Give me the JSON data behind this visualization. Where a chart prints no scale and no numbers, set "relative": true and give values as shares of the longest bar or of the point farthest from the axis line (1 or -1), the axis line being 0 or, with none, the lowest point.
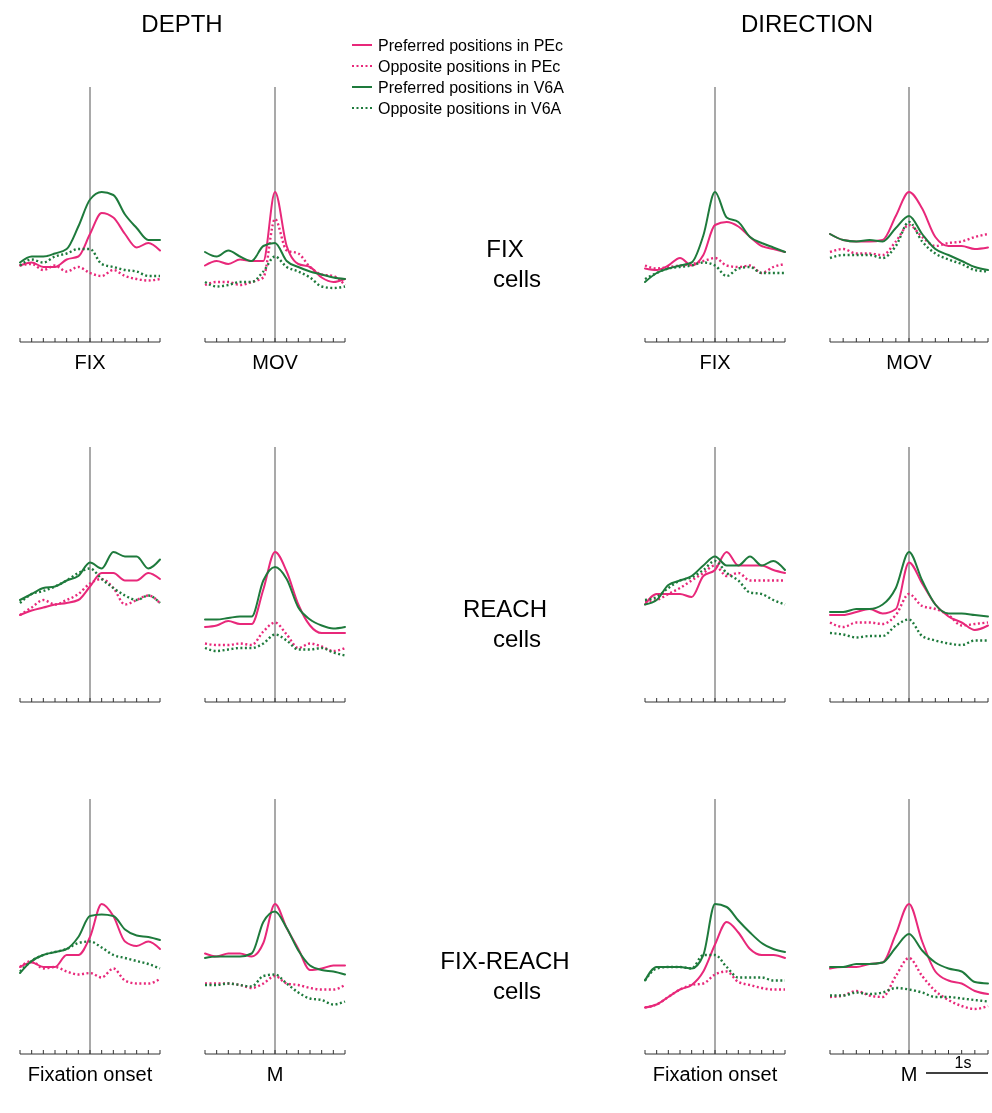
{
  "chart_data": [
    {
      "type": "line",
      "title": "DEPTH",
      "relative": true,
      "annotations": [
        "FIX"
      ],
      "categories": [
        null,
        null,
        null,
        null,
        null,
        null,
        null,
        null,
        null,
        null,
        null,
        null,
        null
      ],
      "series": [
        {
          "color": "#e8287a",
          "line_style": "solid",
          "values": [
            0.51,
            0.53,
            0.5,
            0.5,
            0.55,
            0.57,
            0.72,
            0.86,
            0.83,
            0.72,
            0.63,
            0.66,
            0.61
          ]
        },
        {
          "color": "#e8287a",
          "line_style": "dotted",
          "values": [
            0.51,
            0.52,
            0.48,
            0.51,
            0.47,
            0.5,
            0.46,
            0.44,
            0.48,
            0.44,
            0.42,
            0.41,
            0.42
          ]
        },
        {
          "color": "#1e7a3c",
          "line_style": "solid",
          "values": [
            0.53,
            0.57,
            0.57,
            0.59,
            0.62,
            0.77,
            0.95,
            1,
            0.98,
            0.85,
            0.76,
            0.68,
            0.68
          ]
        },
        {
          "color": "#1e7a3c",
          "line_style": "dotted",
          "values": [
            0.51,
            0.55,
            0.53,
            0.57,
            0.59,
            0.62,
            0.62,
            0.52,
            0.5,
            0.48,
            0.47,
            0.44,
            0.44
          ]
        }
      ]
    },
    {
      "type": "line",
      "relative": true,
      "legend": "top right",
      "annotations": [
        "MOV"
      ],
      "categories": [
        null,
        null,
        null,
        null,
        null,
        null,
        null,
        null,
        null,
        null,
        null,
        null,
        null
      ],
      "series": [
        {
          "name": "Preferred positions in PEc",
          "color": "#e8287a",
          "line_style": "solid",
          "values": [
            0.51,
            0.54,
            0.52,
            0.55,
            0.54,
            0.54,
            1,
            0.64,
            0.52,
            0.5,
            0.43,
            0.4,
            0.42
          ]
        },
        {
          "name": "Opposite positions in PEc",
          "color": "#e8287a",
          "line_style": "dotted",
          "values": [
            0.38,
            0.4,
            0.4,
            0.38,
            0.4,
            0.43,
            0.82,
            0.61,
            0.59,
            0.5,
            0.45,
            0.44,
            0.38
          ]
        },
        {
          "name": "Preferred positions in V6A",
          "color": "#1e7a3c",
          "line_style": "solid",
          "values": [
            0.6,
            0.57,
            0.61,
            0.57,
            0.54,
            0.64,
            0.66,
            0.54,
            0.5,
            0.47,
            0.45,
            0.43,
            0.42
          ]
        },
        {
          "name": "Opposite positions in V6A",
          "color": "#1e7a3c",
          "line_style": "dotted",
          "values": [
            0.4,
            0.37,
            0.38,
            0.4,
            0.4,
            0.47,
            0.57,
            0.5,
            0.47,
            0.43,
            0.37,
            0.36,
            0.37
          ]
        }
      ]
    },
    {
      "type": "line",
      "title": "DIRECTION",
      "ylabel": "FIX cells",
      "relative": true,
      "annotations": [
        "FIX"
      ],
      "categories": [
        null,
        null,
        null,
        null,
        null,
        null,
        null,
        null,
        null,
        null,
        null,
        null,
        null
      ],
      "series": [
        {
          "color": "#e8287a",
          "line_style": "solid",
          "values": [
            0.49,
            0.48,
            0.51,
            0.56,
            0.51,
            0.58,
            0.78,
            0.8,
            0.77,
            0.7,
            0.64,
            0.62,
            0.6
          ]
        },
        {
          "color": "#e8287a",
          "line_style": "dotted",
          "values": [
            0.51,
            0.49,
            0.5,
            0.51,
            0.52,
            0.54,
            0.56,
            0.51,
            0.5,
            0.51,
            0.46,
            0.5,
            0.52
          ]
        },
        {
          "color": "#1e7a3c",
          "line_style": "solid",
          "values": [
            0.4,
            0.46,
            0.49,
            0.51,
            0.53,
            0.71,
            1,
            0.83,
            0.8,
            0.7,
            0.66,
            0.63,
            0.6
          ]
        },
        {
          "color": "#1e7a3c",
          "line_style": "dotted",
          "values": [
            0.42,
            0.46,
            0.49,
            0.5,
            0.51,
            0.53,
            0.51,
            0.44,
            0.49,
            0.5,
            0.46,
            0.46,
            0.46
          ]
        }
      ]
    },
    {
      "type": "line",
      "relative": true,
      "annotations": [
        "MOV"
      ],
      "categories": [
        null,
        null,
        null,
        null,
        null,
        null,
        null,
        null,
        null,
        null,
        null,
        null,
        null
      ],
      "series": [
        {
          "color": "#e8287a",
          "line_style": "solid",
          "values": [
            0.72,
            0.68,
            0.67,
            0.67,
            0.68,
            0.84,
            1,
            0.89,
            0.7,
            0.64,
            0.64,
            0.62,
            0.63
          ]
        },
        {
          "color": "#e8287a",
          "line_style": "dotted",
          "values": [
            0.6,
            0.62,
            0.59,
            0.59,
            0.58,
            0.67,
            0.78,
            0.7,
            0.64,
            0.66,
            0.67,
            0.7,
            0.72
          ]
        },
        {
          "color": "#1e7a3c",
          "line_style": "solid",
          "values": [
            0.72,
            0.68,
            0.67,
            0.68,
            0.67,
            0.76,
            0.84,
            0.72,
            0.62,
            0.58,
            0.54,
            0.5,
            0.48
          ]
        },
        {
          "color": "#1e7a3c",
          "line_style": "dotted",
          "values": [
            0.56,
            0.58,
            0.58,
            0.58,
            0.56,
            0.64,
            0.8,
            0.67,
            0.59,
            0.55,
            0.52,
            0.48,
            0.47
          ]
        }
      ]
    },
    {
      "type": "line",
      "relative": true,
      "categories": [
        null,
        null,
        null,
        null,
        null,
        null,
        null,
        null,
        null,
        null,
        null,
        null,
        null
      ],
      "series": [
        {
          "color": "#e8287a",
          "line_style": "solid",
          "values": [
            0.58,
            0.61,
            0.63,
            0.65,
            0.66,
            0.68,
            0.77,
            0.86,
            0.86,
            0.81,
            0.81,
            0.86,
            0.82
          ]
        },
        {
          "color": "#e8287a",
          "line_style": "dotted",
          "values": [
            0.58,
            0.63,
            0.68,
            0.65,
            0.68,
            0.72,
            0.79,
            0.82,
            0.76,
            0.65,
            0.68,
            0.71,
            0.66
          ]
        },
        {
          "color": "#1e7a3c",
          "line_style": "solid",
          "values": [
            0.68,
            0.72,
            0.76,
            0.77,
            0.81,
            0.84,
            0.93,
            0.89,
            1,
            0.97,
            0.97,
            0.89,
            0.95
          ]
        },
        {
          "color": "#1e7a3c",
          "line_style": "dotted",
          "values": [
            0.66,
            0.72,
            0.74,
            0.77,
            0.81,
            0.86,
            0.89,
            0.82,
            0.76,
            0.71,
            0.68,
            0.71,
            0.66
          ]
        }
      ]
    },
    {
      "type": "line",
      "relative": true,
      "categories": [
        null,
        null,
        null,
        null,
        null,
        null,
        null,
        null,
        null,
        null,
        null,
        null,
        null
      ],
      "series": [
        {
          "color": "#e8287a",
          "line_style": "solid",
          "values": [
            0.5,
            0.51,
            0.54,
            0.52,
            0.52,
            0.75,
            1,
            0.87,
            0.65,
            0.51,
            0.46,
            0.46,
            0.46
          ]
        },
        {
          "color": "#e8287a",
          "line_style": "dotted",
          "values": [
            0.39,
            0.38,
            0.38,
            0.39,
            0.38,
            0.47,
            0.53,
            0.45,
            0.36,
            0.39,
            0.37,
            0.34,
            0.36
          ]
        },
        {
          "color": "#1e7a3c",
          "line_style": "solid",
          "values": [
            0.55,
            0.55,
            0.56,
            0.57,
            0.57,
            0.81,
            0.9,
            0.82,
            0.63,
            0.55,
            0.51,
            0.49,
            0.5
          ]
        },
        {
          "color": "#1e7a3c",
          "line_style": "dotted",
          "values": [
            0.36,
            0.34,
            0.35,
            0.36,
            0.36,
            0.39,
            0.45,
            0.41,
            0.35,
            0.35,
            0.36,
            0.33,
            0.31
          ]
        }
      ]
    },
    {
      "type": "line",
      "ylabel": "REACH cells",
      "relative": true,
      "categories": [
        null,
        null,
        null,
        null,
        null,
        null,
        null,
        null,
        null,
        null,
        null,
        null,
        null
      ],
      "series": [
        {
          "color": "#e8287a",
          "line_style": "solid",
          "values": [
            0.65,
            0.72,
            0.72,
            0.72,
            0.7,
            0.84,
            0.88,
            1,
            0.91,
            0.91,
            0.91,
            0.88,
            0.86
          ]
        },
        {
          "color": "#e8287a",
          "line_style": "dotted",
          "values": [
            0.67,
            0.68,
            0.72,
            0.76,
            0.81,
            0.86,
            0.91,
            0.84,
            0.86,
            0.81,
            0.81,
            0.81,
            0.81
          ]
        },
        {
          "color": "#1e7a3c",
          "line_style": "solid",
          "values": [
            0.65,
            0.68,
            0.78,
            0.81,
            0.84,
            0.91,
            0.97,
            0.91,
            0.91,
            0.97,
            0.91,
            0.94,
            0.88
          ]
        },
        {
          "color": "#1e7a3c",
          "line_style": "dotted",
          "values": [
            0.68,
            0.7,
            0.76,
            0.81,
            0.83,
            0.88,
            0.94,
            0.86,
            0.81,
            0.73,
            0.72,
            0.68,
            0.65
          ]
        }
      ]
    },
    {
      "type": "line",
      "relative": true,
      "categories": [
        null,
        null,
        null,
        null,
        null,
        null,
        null,
        null,
        null,
        null,
        null,
        null,
        null
      ],
      "series": [
        {
          "color": "#e8287a",
          "line_style": "solid",
          "values": [
            0.58,
            0.58,
            0.6,
            0.62,
            0.59,
            0.62,
            0.93,
            0.79,
            0.65,
            0.57,
            0.53,
            0.48,
            0.51
          ]
        },
        {
          "color": "#e8287a",
          "line_style": "dotted",
          "values": [
            0.53,
            0.5,
            0.53,
            0.53,
            0.52,
            0.58,
            0.72,
            0.64,
            0.62,
            0.58,
            0.51,
            0.52,
            0.53
          ]
        },
        {
          "color": "#1e7a3c",
          "line_style": "solid",
          "values": [
            0.6,
            0.6,
            0.62,
            0.62,
            0.65,
            0.76,
            1,
            0.81,
            0.65,
            0.59,
            0.59,
            0.58,
            0.57
          ]
        },
        {
          "color": "#1e7a3c",
          "line_style": "dotted",
          "values": [
            0.46,
            0.45,
            0.43,
            0.44,
            0.44,
            0.51,
            0.55,
            0.44,
            0.41,
            0.39,
            0.38,
            0.41,
            0.41
          ]
        }
      ]
    },
    {
      "type": "line",
      "relative": true,
      "annotations": [
        "Fixation onset"
      ],
      "categories": [
        null,
        null,
        null,
        null,
        null,
        null,
        null,
        null,
        null,
        null,
        null,
        null,
        null
      ],
      "series": [
        {
          "color": "#e8287a",
          "line_style": "solid",
          "values": [
            0.58,
            0.61,
            0.58,
            0.58,
            0.66,
            0.66,
            0.78,
            1,
            0.92,
            0.75,
            0.72,
            0.75,
            0.7
          ]
        },
        {
          "color": "#e8287a",
          "line_style": "dotted",
          "values": [
            0.58,
            0.62,
            0.57,
            0.58,
            0.55,
            0.53,
            0.54,
            0.51,
            0.57,
            0.49,
            0.47,
            0.47,
            0.5
          ]
        },
        {
          "color": "#1e7a3c",
          "line_style": "solid",
          "values": [
            0.54,
            0.62,
            0.66,
            0.68,
            0.7,
            0.78,
            0.92,
            0.93,
            0.92,
            0.83,
            0.79,
            0.78,
            0.76
          ]
        },
        {
          "color": "#1e7a3c",
          "line_style": "dotted",
          "values": [
            0.55,
            0.62,
            0.66,
            0.68,
            0.7,
            0.74,
            0.75,
            0.71,
            0.66,
            0.64,
            0.62,
            0.6,
            0.57
          ]
        }
      ]
    },
    {
      "type": "line",
      "relative": true,
      "annotations": [
        "M"
      ],
      "categories": [
        null,
        null,
        null,
        null,
        null,
        null,
        null,
        null,
        null,
        null,
        null,
        null,
        null
      ],
      "series": [
        {
          "color": "#e8287a",
          "line_style": "solid",
          "values": [
            0.67,
            0.65,
            0.67,
            0.67,
            0.65,
            0.74,
            1,
            0.84,
            0.7,
            0.56,
            0.57,
            0.59,
            0.59
          ]
        },
        {
          "color": "#e8287a",
          "line_style": "dotted",
          "values": [
            0.47,
            0.47,
            0.47,
            0.46,
            0.44,
            0.47,
            0.52,
            0.47,
            0.46,
            0.44,
            0.43,
            0.43,
            0.46
          ]
        },
        {
          "color": "#1e7a3c",
          "line_style": "solid",
          "values": [
            0.64,
            0.65,
            0.65,
            0.65,
            0.67,
            0.88,
            0.95,
            0.84,
            0.69,
            0.59,
            0.56,
            0.55,
            0.53
          ]
        },
        {
          "color": "#1e7a3c",
          "line_style": "dotted",
          "values": [
            0.46,
            0.46,
            0.47,
            0.46,
            0.45,
            0.52,
            0.53,
            0.47,
            0.41,
            0.37,
            0.36,
            0.33,
            0.35
          ]
        }
      ]
    },
    {
      "type": "line",
      "ylabel": "FIX-REACH cells",
      "relative": true,
      "annotations": [
        "Fixation onset"
      ],
      "categories": [
        null,
        null,
        null,
        null,
        null,
        null,
        null,
        null,
        null,
        null,
        null,
        null,
        null
      ],
      "series": [
        {
          "color": "#e8287a",
          "line_style": "solid",
          "values": [
            0.31,
            0.33,
            0.38,
            0.43,
            0.46,
            0.55,
            0.73,
            0.88,
            0.81,
            0.7,
            0.66,
            0.66,
            0.64
          ]
        },
        {
          "color": "#e8287a",
          "line_style": "dotted",
          "values": [
            0.31,
            0.33,
            0.38,
            0.43,
            0.46,
            0.47,
            0.53,
            0.55,
            0.48,
            0.46,
            0.44,
            0.43,
            0.43
          ]
        },
        {
          "color": "#1e7a3c",
          "line_style": "solid",
          "values": [
            0.49,
            0.58,
            0.58,
            0.58,
            0.57,
            0.66,
            1,
            0.98,
            0.89,
            0.81,
            0.74,
            0.7,
            0.68
          ]
        },
        {
          "color": "#1e7a3c",
          "line_style": "dotted",
          "values": [
            0.49,
            0.57,
            0.58,
            0.58,
            0.57,
            0.66,
            0.66,
            0.58,
            0.51,
            0.51,
            0.51,
            0.49,
            0.49
          ]
        }
      ]
    },
    {
      "type": "line",
      "relative": true,
      "annotations": [
        "M",
        "1s"
      ],
      "categories": [
        null,
        null,
        null,
        null,
        null,
        null,
        null,
        null,
        null,
        null,
        null,
        null,
        null
      ],
      "series": [
        {
          "color": "#e8287a",
          "line_style": "solid",
          "values": [
            0.57,
            0.58,
            0.58,
            0.6,
            0.61,
            0.8,
            1,
            0.75,
            0.55,
            0.49,
            0.47,
            0.42,
            0.4
          ]
        },
        {
          "color": "#e8287a",
          "line_style": "dotted",
          "values": [
            0.38,
            0.39,
            0.42,
            0.39,
            0.38,
            0.52,
            0.64,
            0.52,
            0.42,
            0.36,
            0.32,
            0.3,
            0.32
          ]
        },
        {
          "color": "#1e7a3c",
          "line_style": "solid",
          "values": [
            0.58,
            0.58,
            0.6,
            0.6,
            0.61,
            0.71,
            0.8,
            0.69,
            0.61,
            0.57,
            0.55,
            0.48,
            0.47
          ]
        },
        {
          "color": "#1e7a3c",
          "line_style": "dotted",
          "values": [
            0.39,
            0.39,
            0.41,
            0.4,
            0.41,
            0.44,
            0.43,
            0.41,
            0.38,
            0.38,
            0.37,
            0.36,
            0.35
          ]
        }
      ]
    }
  ]
}
